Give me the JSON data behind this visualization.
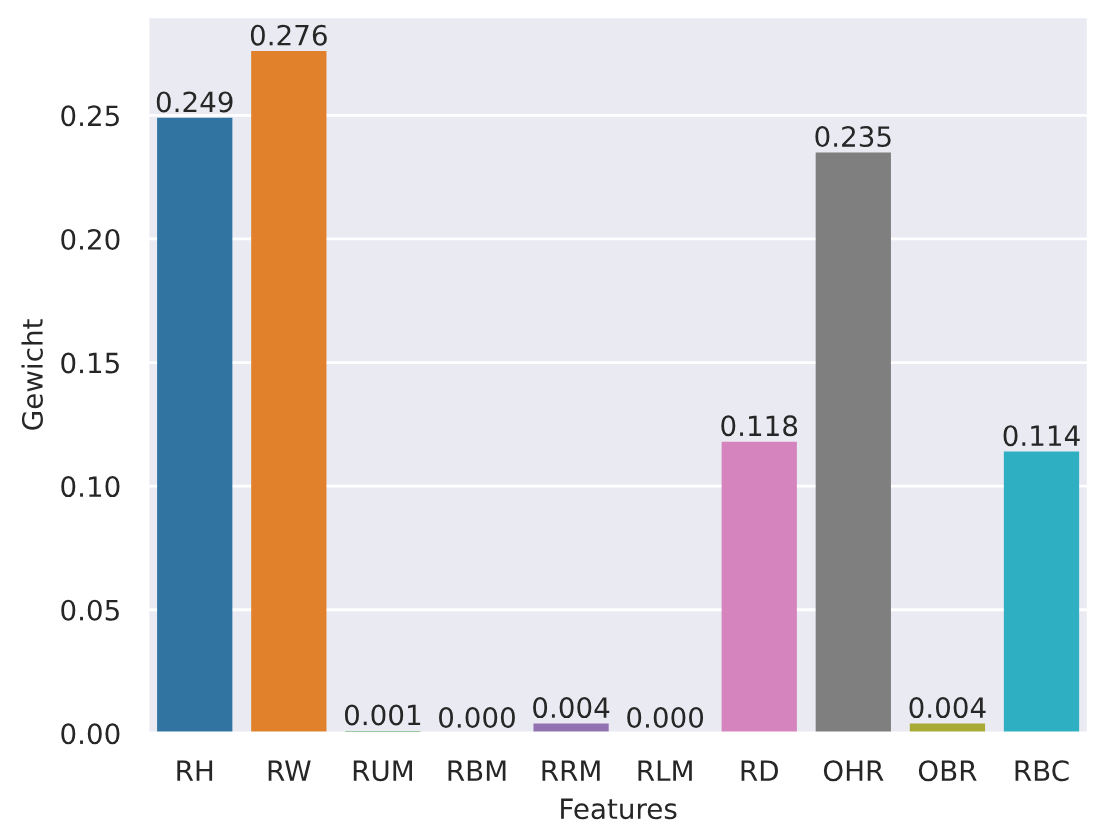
{
  "chart_data": {
    "type": "bar",
    "xlabel": "Features",
    "ylabel": "Gewicht",
    "categories": [
      "RH",
      "RW",
      "RUM",
      "RBM",
      "RRM",
      "RLM",
      "RD",
      "OHR",
      "OBR",
      "RBC"
    ],
    "values": [
      0.249,
      0.276,
      0.001,
      0.0,
      0.004,
      0.0,
      0.118,
      0.235,
      0.004,
      0.114
    ],
    "value_labels": [
      "0.249",
      "0.276",
      "0.001",
      "0.000",
      "0.004",
      "0.000",
      "0.118",
      "0.235",
      "0.004",
      "0.114"
    ],
    "colors": [
      "#3274a1",
      "#e1812c",
      "#3a923a",
      "#c03d3e",
      "#9372b2",
      "#845b53",
      "#d684bd",
      "#7f7f7f",
      "#a9aa35",
      "#2eb0c2"
    ],
    "ylim": [
      0,
      0.29
    ],
    "yticks": [
      {
        "value": 0,
        "label": "0.00"
      },
      {
        "value": 0.05,
        "label": "0.05"
      },
      {
        "value": 0.1,
        "label": "0.10"
      },
      {
        "value": 0.15,
        "label": "0.15"
      },
      {
        "value": 0.2,
        "label": "0.20"
      },
      {
        "value": 0.25,
        "label": "0.25"
      }
    ],
    "grid": "y"
  }
}
